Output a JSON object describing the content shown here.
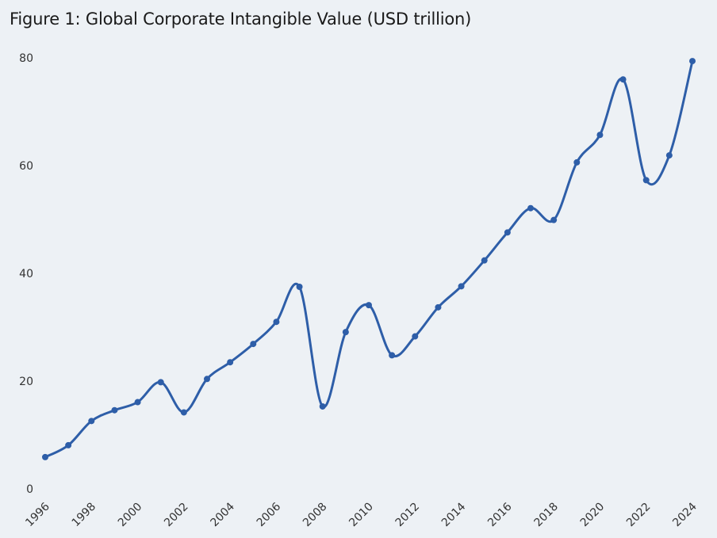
{
  "chart_data": {
    "type": "line",
    "title": "Figure 1: Global Corporate Intangible Value (USD trillion)",
    "xlabel": "",
    "ylabel": "",
    "ylim": [
      0,
      80
    ],
    "yticks": [
      0,
      20,
      40,
      60,
      80
    ],
    "xticks": [
      1996,
      1998,
      2000,
      2002,
      2004,
      2006,
      2008,
      2010,
      2012,
      2014,
      2016,
      2018,
      2020,
      2022,
      2024
    ],
    "line_color": "#2e5ea8",
    "series": [
      {
        "name": "Intangible value",
        "x": [
          1996,
          1997,
          1998,
          1999,
          2000,
          2001,
          2002,
          2003,
          2004,
          2005,
          2006,
          2007,
          2008,
          2009,
          2010,
          2011,
          2012,
          2013,
          2014,
          2015,
          2016,
          2017,
          2018,
          2019,
          2020,
          2021,
          2022,
          2023,
          2024
        ],
        "values": [
          5.9,
          8.1,
          12.6,
          14.6,
          16.1,
          19.8,
          14.2,
          20.4,
          23.5,
          26.9,
          31.0,
          37.5,
          15.3,
          29.1,
          34.1,
          24.8,
          28.3,
          33.7,
          37.6,
          42.4,
          47.6,
          52.1,
          49.9,
          60.6,
          65.7,
          76.0,
          57.3,
          61.9,
          79.4
        ]
      }
    ]
  }
}
